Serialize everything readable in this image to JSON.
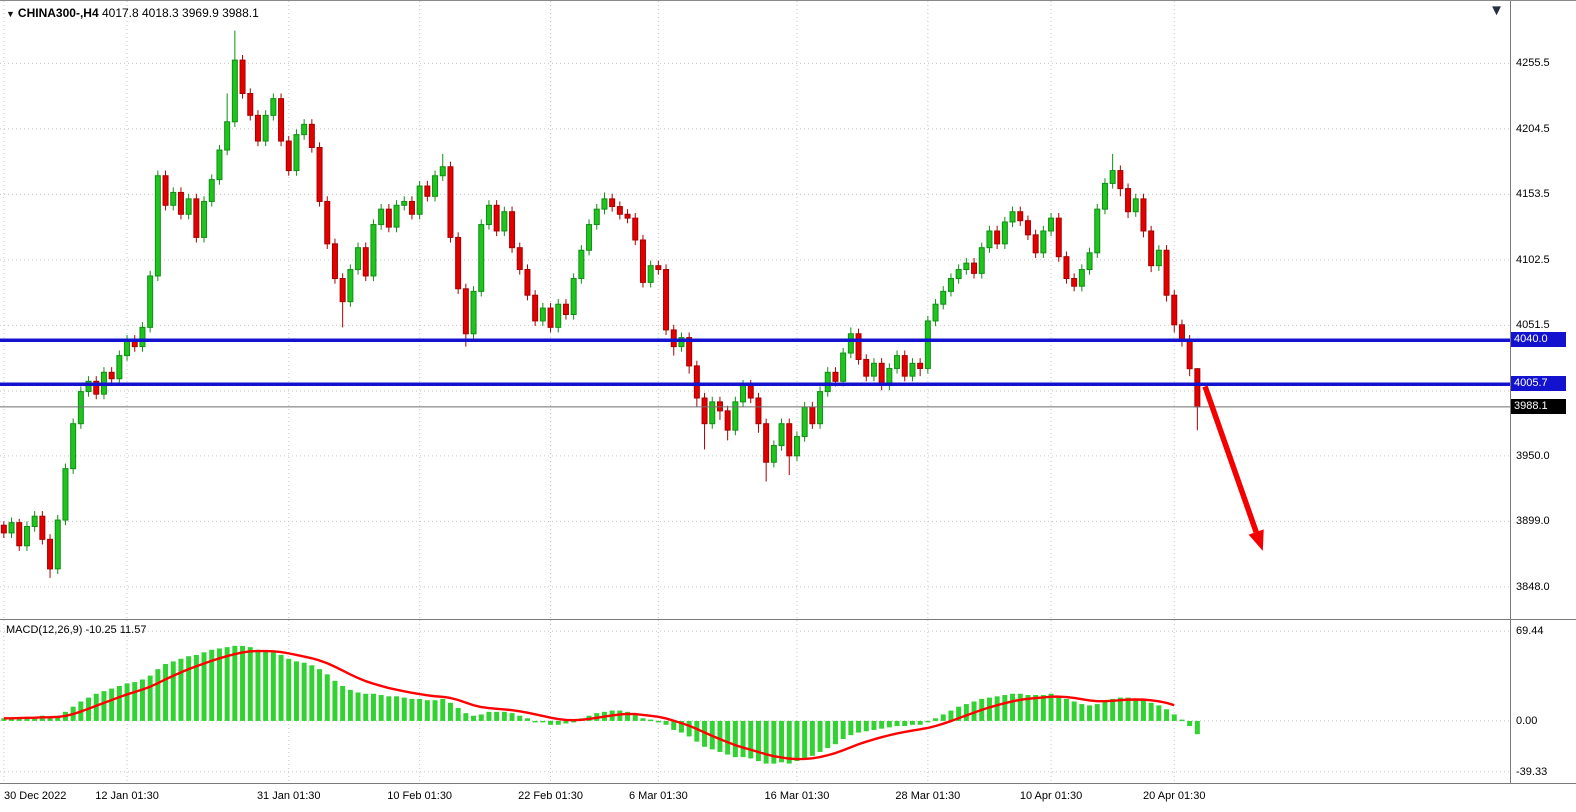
{
  "window": {
    "title": "CHINA300-,H4",
    "symbol": "CHINA300-",
    "timeframe": "H4",
    "quote": "4017.8 4018.3 3969.9 3988.1"
  },
  "colors": {
    "up": "#1fc41f",
    "up_stroke": "#0f8f14",
    "down": "#e30000",
    "down_stroke": "#a80000",
    "macd_bar": "#32d232",
    "signal": "#ff0000",
    "level": "#1212cf",
    "level_tag_bg": "#1212cf",
    "current_tag_bg": "#000000",
    "grid": "#c6c6c6",
    "current_line": "#6e6e6e",
    "arrow": "#f40000"
  },
  "chart_data": [
    {
      "type": "candlestick",
      "title": "CHINA300-,H4",
      "ylim": [
        3823,
        4304
      ],
      "yticks": [
        4255.5,
        4204.5,
        4153.5,
        4102.5,
        4051.5,
        3950.0,
        3899.0,
        3848.0
      ],
      "extra_gridlines": [
        4000.5
      ],
      "xticks": [
        {
          "label": "30 Dec 2022",
          "index": 0
        },
        {
          "label": "12 Jan 01:30",
          "index": 16
        },
        {
          "label": "31 Jan 01:30",
          "index": 37
        },
        {
          "label": "10 Feb 01:30",
          "index": 54
        },
        {
          "label": "22 Feb 01:30",
          "index": 71
        },
        {
          "label": "6 Mar 01:30",
          "index": 85
        },
        {
          "label": "16 Mar 01:30",
          "index": 103
        },
        {
          "label": "28 Mar 01:30",
          "index": 120
        },
        {
          "label": "10 Apr 01:30",
          "index": 136
        },
        {
          "label": "20 Apr 01:30",
          "index": 152
        }
      ],
      "levels": [
        {
          "value": 4040.0,
          "label": "4040.0"
        },
        {
          "value": 4005.7,
          "label": "4005.7"
        }
      ],
      "current_price": {
        "value": 3988.1,
        "label": "3988.1"
      },
      "arrow": {
        "from": {
          "index": 156,
          "price": 4004
        },
        "to": {
          "index": 163.5,
          "price": 3876
        }
      },
      "candles": [
        [
          3896,
          3899,
          3886,
          3890
        ],
        [
          3890,
          3902,
          3886,
          3898
        ],
        [
          3898,
          3901,
          3876,
          3880
        ],
        [
          3880,
          3899,
          3876,
          3895
        ],
        [
          3895,
          3907,
          3891,
          3903
        ],
        [
          3903,
          3907,
          3881,
          3885
        ],
        [
          3885,
          3889,
          3855,
          3862
        ],
        [
          3862,
          3904,
          3858,
          3900
        ],
        [
          3900,
          3944,
          3896,
          3940
        ],
        [
          3940,
          3979,
          3936,
          3975
        ],
        [
          3975,
          4004,
          3971,
          4000
        ],
        [
          4000,
          4012,
          3996,
          4008
        ],
        [
          4008,
          4012,
          3994,
          3998
        ],
        [
          3998,
          4019,
          3994,
          4015
        ],
        [
          4015,
          4019,
          4006,
          4010
        ],
        [
          4010,
          4032,
          4006,
          4028
        ],
        [
          4028,
          4044,
          4024,
          4040
        ],
        [
          4040,
          4044,
          4031,
          4035
        ],
        [
          4035,
          4054,
          4031,
          4050
        ],
        [
          4050,
          4094,
          4046,
          4090
        ],
        [
          4090,
          4172,
          4086,
          4168
        ],
        [
          4168,
          4172,
          4141,
          4145
        ],
        [
          4145,
          4159,
          4141,
          4155
        ],
        [
          4155,
          4159,
          4134,
          4138
        ],
        [
          4138,
          4154,
          4134,
          4150
        ],
        [
          4150,
          4154,
          4116,
          4120
        ],
        [
          4120,
          4152,
          4116,
          4148
        ],
        [
          4148,
          4169,
          4144,
          4165
        ],
        [
          4165,
          4192,
          4161,
          4188
        ],
        [
          4188,
          4232,
          4184,
          4210
        ],
        [
          4210,
          4281,
          4206,
          4258
        ],
        [
          4258,
          4262,
          4228,
          4232
        ],
        [
          4232,
          4236,
          4211,
          4215
        ],
        [
          4215,
          4219,
          4191,
          4195
        ],
        [
          4195,
          4219,
          4191,
          4215
        ],
        [
          4215,
          4232,
          4211,
          4228
        ],
        [
          4228,
          4232,
          4191,
          4195
        ],
        [
          4195,
          4199,
          4168,
          4172
        ],
        [
          4172,
          4204,
          4168,
          4200
        ],
        [
          4200,
          4212,
          4196,
          4208
        ],
        [
          4208,
          4212,
          4186,
          4190
        ],
        [
          4190,
          4194,
          4144,
          4148
        ],
        [
          4148,
          4152,
          4111,
          4115
        ],
        [
          4115,
          4119,
          4084,
          4088
        ],
        [
          4088,
          4092,
          4050,
          4070
        ],
        [
          4070,
          4099,
          4066,
          4095
        ],
        [
          4095,
          4116,
          4091,
          4112
        ],
        [
          4112,
          4116,
          4086,
          4090
        ],
        [
          4090,
          4134,
          4086,
          4130
        ],
        [
          4130,
          4146,
          4126,
          4142
        ],
        [
          4142,
          4146,
          4124,
          4128
        ],
        [
          4128,
          4149,
          4124,
          4145
        ],
        [
          4145,
          4152,
          4141,
          4148
        ],
        [
          4148,
          4152,
          4134,
          4138
        ],
        [
          4138,
          4164,
          4134,
          4160
        ],
        [
          4160,
          4164,
          4148,
          4152
        ],
        [
          4152,
          4172,
          4148,
          4168
        ],
        [
          4168,
          4185,
          4164,
          4175
        ],
        [
          4175,
          4179,
          4116,
          4120
        ],
        [
          4120,
          4124,
          4076,
          4080
        ],
        [
          4080,
          4084,
          4035,
          4045
        ],
        [
          4045,
          4082,
          4041,
          4078
        ],
        [
          4078,
          4134,
          4074,
          4130
        ],
        [
          4130,
          4149,
          4126,
          4145
        ],
        [
          4145,
          4149,
          4121,
          4125
        ],
        [
          4125,
          4144,
          4121,
          4140
        ],
        [
          4140,
          4144,
          4108,
          4112
        ],
        [
          4112,
          4116,
          4091,
          4095
        ],
        [
          4095,
          4099,
          4071,
          4075
        ],
        [
          4075,
          4079,
          4051,
          4055
        ],
        [
          4055,
          4069,
          4051,
          4065
        ],
        [
          4065,
          4069,
          4046,
          4050
        ],
        [
          4050,
          4072,
          4046,
          4068
        ],
        [
          4068,
          4072,
          4056,
          4060
        ],
        [
          4060,
          4092,
          4056,
          4088
        ],
        [
          4088,
          4114,
          4084,
          4110
        ],
        [
          4110,
          4134,
          4106,
          4130
        ],
        [
          4130,
          4146,
          4126,
          4142
        ],
        [
          4142,
          4155,
          4138,
          4150
        ],
        [
          4150,
          4154,
          4140,
          4144
        ],
        [
          4144,
          4148,
          4134,
          4138
        ],
        [
          4138,
          4142,
          4131,
          4135
        ],
        [
          4135,
          4139,
          4114,
          4118
        ],
        [
          4118,
          4122,
          4081,
          4085
        ],
        [
          4085,
          4102,
          4081,
          4098
        ],
        [
          4098,
          4102,
          4091,
          4095
        ],
        [
          4095,
          4099,
          4044,
          4048
        ],
        [
          4048,
          4052,
          4028,
          4035
        ],
        [
          4035,
          4046,
          4031,
          4042
        ],
        [
          4042,
          4046,
          4014,
          4020
        ],
        [
          4020,
          4024,
          3988,
          3995
        ],
        [
          3995,
          3999,
          3955,
          3975
        ],
        [
          3975,
          3996,
          3971,
          3992
        ],
        [
          3992,
          3996,
          3978,
          3985
        ],
        [
          3985,
          3989,
          3962,
          3970
        ],
        [
          3970,
          3996,
          3966,
          3992
        ],
        [
          3992,
          4009,
          3988,
          4005
        ],
        [
          4005,
          4009,
          3991,
          3995
        ],
        [
          3995,
          3999,
          3968,
          3975
        ],
        [
          3975,
          3979,
          3930,
          3945
        ],
        [
          3945,
          3962,
          3941,
          3958
        ],
        [
          3958,
          3979,
          3954,
          3975
        ],
        [
          3975,
          3979,
          3935,
          3950
        ],
        [
          3950,
          3969,
          3946,
          3965
        ],
        [
          3965,
          3992,
          3961,
          3988
        ],
        [
          3988,
          3992,
          3971,
          3975
        ],
        [
          3975,
          4004,
          3971,
          4000
        ],
        [
          4000,
          4019,
          3996,
          4015
        ],
        [
          4015,
          4019,
          4004,
          4008
        ],
        [
          4008,
          4034,
          4004,
          4030
        ],
        [
          4030,
          4050,
          4026,
          4045
        ],
        [
          4045,
          4049,
          4021,
          4025
        ],
        [
          4025,
          4029,
          4008,
          4012
        ],
        [
          4012,
          4026,
          4008,
          4022
        ],
        [
          4022,
          4026,
          4001,
          4005
        ],
        [
          4005,
          4022,
          4001,
          4018
        ],
        [
          4018,
          4032,
          4014,
          4028
        ],
        [
          4028,
          4032,
          4008,
          4012
        ],
        [
          4012,
          4026,
          4008,
          4022
        ],
        [
          4022,
          4026,
          4012,
          4018
        ],
        [
          4018,
          4059,
          4014,
          4055
        ],
        [
          4055,
          4072,
          4051,
          4068
        ],
        [
          4068,
          4082,
          4064,
          4078
        ],
        [
          4078,
          4092,
          4074,
          4088
        ],
        [
          4088,
          4099,
          4084,
          4095
        ],
        [
          4095,
          4104,
          4091,
          4100
        ],
        [
          4100,
          4104,
          4088,
          4092
        ],
        [
          4092,
          4116,
          4088,
          4112
        ],
        [
          4112,
          4129,
          4108,
          4125
        ],
        [
          4125,
          4129,
          4111,
          4115
        ],
        [
          4115,
          4136,
          4111,
          4132
        ],
        [
          4132,
          4144,
          4128,
          4140
        ],
        [
          4140,
          4144,
          4129,
          4133
        ],
        [
          4133,
          4137,
          4118,
          4122
        ],
        [
          4122,
          4126,
          4104,
          4108
        ],
        [
          4108,
          4129,
          4104,
          4125
        ],
        [
          4125,
          4139,
          4121,
          4135
        ],
        [
          4135,
          4139,
          4101,
          4105
        ],
        [
          4105,
          4109,
          4084,
          4088
        ],
        [
          4088,
          4092,
          4078,
          4082
        ],
        [
          4082,
          4099,
          4078,
          4095
        ],
        [
          4095,
          4112,
          4091,
          4108
        ],
        [
          4108,
          4146,
          4104,
          4142
        ],
        [
          4142,
          4166,
          4138,
          4162
        ],
        [
          4162,
          4185,
          4158,
          4172
        ],
        [
          4172,
          4176,
          4152,
          4158
        ],
        [
          4158,
          4162,
          4135,
          4140
        ],
        [
          4140,
          4154,
          4136,
          4150
        ],
        [
          4150,
          4154,
          4120,
          4125
        ],
        [
          4125,
          4129,
          4093,
          4098
        ],
        [
          4098,
          4114,
          4094,
          4110
        ],
        [
          4110,
          4114,
          4070,
          4075
        ],
        [
          4075,
          4079,
          4046,
          4052
        ],
        [
          4052,
          4056,
          4035,
          4040
        ],
        [
          4040,
          4044,
          4012,
          4017.8
        ],
        [
          4017.8,
          4018.3,
          3969.9,
          3988.1
        ]
      ]
    },
    {
      "type": "bar",
      "name": "MACD",
      "label": "MACD(12,26,9)",
      "main_value": "-10.25",
      "signal_value": "11.57",
      "ylim": [
        -48,
        78
      ],
      "yticks": [
        69.44,
        0,
        -39.33
      ],
      "ytick_labels": [
        "69.44",
        "0.00",
        "-39.33"
      ],
      "values": [
        2,
        2,
        3,
        3,
        3,
        4,
        3,
        4,
        7,
        11,
        15,
        18,
        21,
        23,
        25,
        27,
        29,
        30,
        32,
        35,
        40,
        44,
        46,
        48,
        50,
        51,
        53,
        55,
        56,
        57,
        58,
        58,
        57,
        55,
        54,
        53,
        51,
        48,
        46,
        45,
        43,
        40,
        36,
        31,
        27,
        24,
        22,
        21,
        21,
        20,
        19,
        19,
        18,
        17,
        17,
        16,
        16,
        17,
        14,
        10,
        6,
        4,
        5,
        7,
        7,
        7,
        6,
        4,
        2,
        0,
        -1,
        -3,
        -3,
        -2,
        0,
        2,
        4,
        6,
        7,
        8,
        8,
        7,
        5,
        2,
        1,
        0,
        -3,
        -7,
        -9,
        -12,
        -16,
        -20,
        -22,
        -24,
        -26,
        -28,
        -28,
        -29,
        -31,
        -33,
        -33,
        -32,
        -33,
        -31,
        -29,
        -27,
        -24,
        -21,
        -18,
        -14,
        -11,
        -9,
        -8,
        -7,
        -6,
        -5,
        -4,
        -4,
        -3,
        -3,
        -1,
        2,
        5,
        8,
        11,
        13,
        15,
        17,
        18,
        19,
        20,
        21,
        21,
        20,
        20,
        20,
        21,
        19,
        17,
        15,
        13,
        12,
        13,
        15,
        17,
        18,
        18,
        17,
        16,
        14,
        12,
        9,
        5,
        1,
        -4,
        -10.25
      ]
    }
  ]
}
